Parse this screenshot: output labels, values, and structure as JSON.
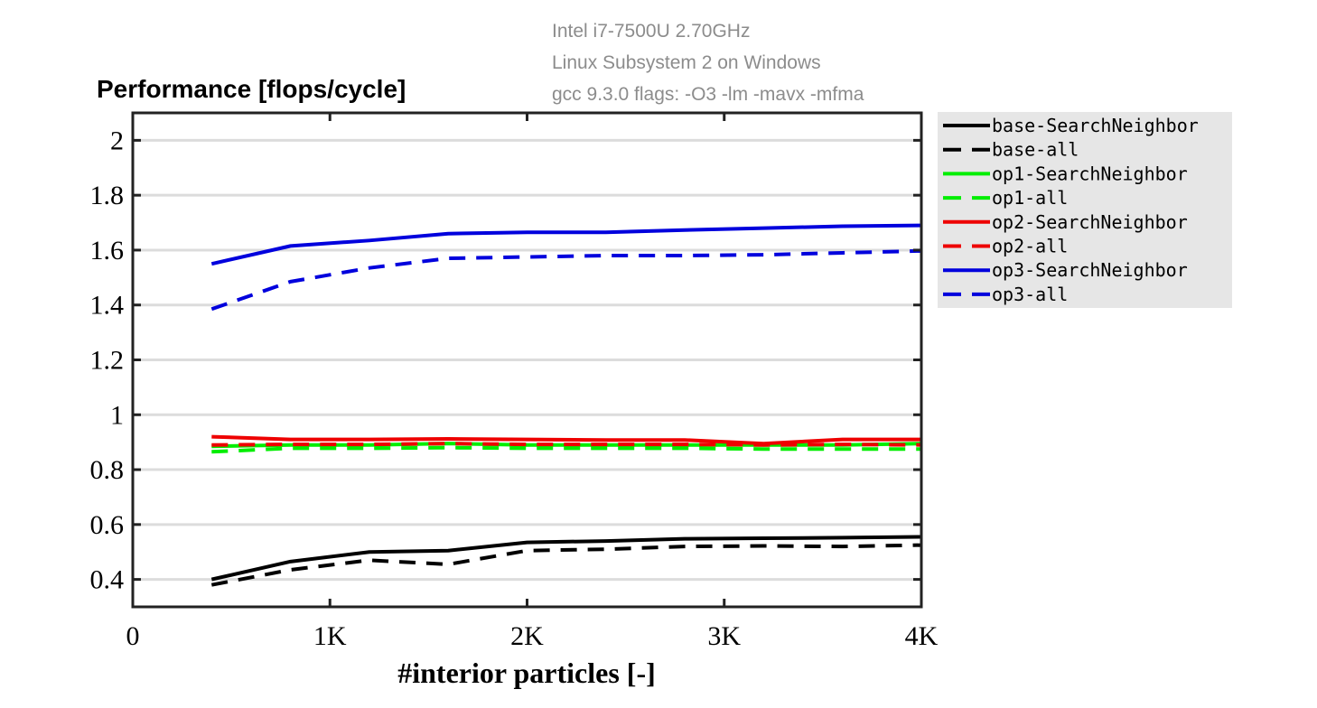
{
  "chart_data": {
    "type": "line",
    "title": "Performance [flops/cycle]",
    "annotations": [
      "Intel i7-7500U 2.70GHz",
      "Linux Subsystem 2 on Windows",
      "gcc 9.3.0 flags: -O3 -lm -mavx -mfma"
    ],
    "xlabel": "#interior particles [-]",
    "ylabel": "",
    "xlim": [
      0,
      4000
    ],
    "ylim": [
      0.3,
      2.1
    ],
    "xticks": [
      0,
      1000,
      2000,
      3000,
      4000
    ],
    "xtick_labels": [
      "0",
      "1K",
      "2K",
      "3K",
      "4K"
    ],
    "yticks": [
      0.4,
      0.6,
      0.8,
      1.0,
      1.2,
      1.4,
      1.6,
      1.8,
      2.0
    ],
    "ytick_labels": [
      "0.4",
      "0.6",
      "0.8",
      "1",
      "1.2",
      "1.4",
      "1.6",
      "1.8",
      "2"
    ],
    "grid": "horizontal",
    "legend_position": "outside-right-top",
    "x": [
      400,
      800,
      1200,
      1600,
      2000,
      2400,
      2800,
      3200,
      3600,
      4000
    ],
    "series": [
      {
        "name": "base-SearchNeighbor",
        "color": "#000000",
        "dash": "solid",
        "values": [
          0.4,
          0.465,
          0.5,
          0.505,
          0.535,
          0.54,
          0.548,
          0.55,
          0.552,
          0.555
        ]
      },
      {
        "name": "base-all",
        "color": "#000000",
        "dash": "dashed",
        "values": [
          0.38,
          0.435,
          0.47,
          0.455,
          0.505,
          0.51,
          0.52,
          0.522,
          0.52,
          0.525
        ]
      },
      {
        "name": "op1-SearchNeighbor",
        "color": "#00ee00",
        "dash": "solid",
        "values": [
          0.885,
          0.89,
          0.89,
          0.895,
          0.89,
          0.89,
          0.89,
          0.89,
          0.89,
          0.895
        ]
      },
      {
        "name": "op1-all",
        "color": "#00ee00",
        "dash": "dashed",
        "values": [
          0.865,
          0.878,
          0.878,
          0.88,
          0.878,
          0.878,
          0.878,
          0.875,
          0.875,
          0.875
        ]
      },
      {
        "name": "op2-SearchNeighbor",
        "color": "#ee0000",
        "dash": "solid",
        "values": [
          0.92,
          0.91,
          0.91,
          0.912,
          0.91,
          0.908,
          0.908,
          0.895,
          0.91,
          0.91
        ]
      },
      {
        "name": "op2-all",
        "color": "#ee0000",
        "dash": "dashed",
        "values": [
          0.89,
          0.892,
          0.892,
          0.895,
          0.892,
          0.892,
          0.892,
          0.89,
          0.892,
          0.89
        ]
      },
      {
        "name": "op3-SearchNeighbor",
        "color": "#0000dd",
        "dash": "solid",
        "values": [
          1.55,
          1.615,
          1.635,
          1.66,
          1.665,
          1.665,
          1.673,
          1.68,
          1.687,
          1.69
        ]
      },
      {
        "name": "op3-all",
        "color": "#0000dd",
        "dash": "dashed",
        "values": [
          1.385,
          1.485,
          1.535,
          1.57,
          1.575,
          1.58,
          1.58,
          1.583,
          1.59,
          1.597
        ]
      }
    ]
  }
}
